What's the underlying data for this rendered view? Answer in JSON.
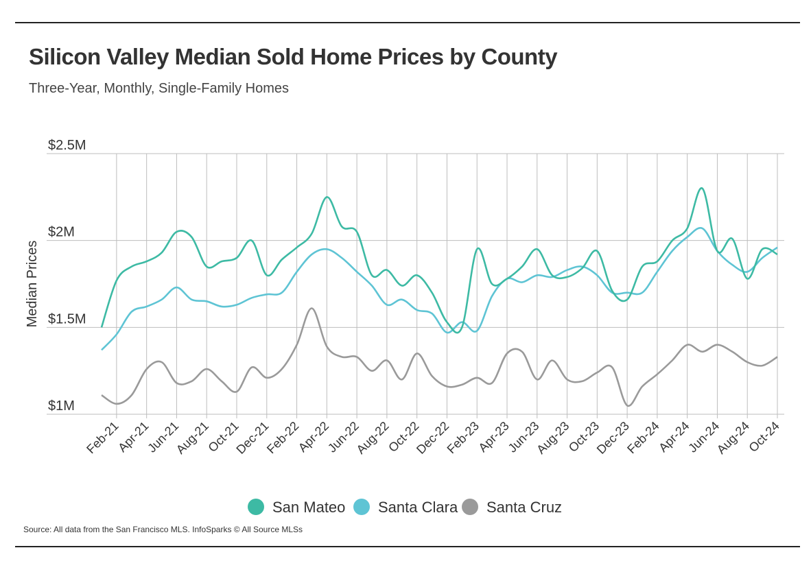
{
  "header": {
    "title": "Silicon Valley Median Sold Home Prices by County",
    "subtitle": "Three-Year, Monthly, Single-Family Homes"
  },
  "footer": {
    "source": "Source:  All data from the San Francisco MLS. InfoSparks © All Source MLSs"
  },
  "chart_data": {
    "type": "line",
    "title": "Silicon Valley Median Sold Home Prices by County",
    "subtitle": "Three-Year, Monthly, Single-Family Homes",
    "ylabel": "Median Prices",
    "xlabel": "",
    "ylim": [
      1000000,
      2500000
    ],
    "yticks": [
      {
        "value": 1000000,
        "label": "$1M"
      },
      {
        "value": 1500000,
        "label": "$1.5M"
      },
      {
        "value": 2000000,
        "label": "$2M"
      },
      {
        "value": 2500000,
        "label": "$2.5M"
      }
    ],
    "grid": "vertical and horizontal",
    "legend_position": "bottom",
    "months": [
      "Jan-21",
      "Feb-21",
      "Mar-21",
      "Apr-21",
      "May-21",
      "Jun-21",
      "Jul-21",
      "Aug-21",
      "Sep-21",
      "Oct-21",
      "Nov-21",
      "Dec-21",
      "Jan-22",
      "Feb-22",
      "Mar-22",
      "Apr-22",
      "May-22",
      "Jun-22",
      "Jul-22",
      "Aug-22",
      "Sep-22",
      "Oct-22",
      "Nov-22",
      "Dec-22",
      "Jan-23",
      "Feb-23",
      "Mar-23",
      "Apr-23",
      "May-23",
      "Jun-23",
      "Jul-23",
      "Aug-23",
      "Sep-23",
      "Oct-23",
      "Nov-23",
      "Dec-23",
      "Jan-24",
      "Feb-24",
      "Mar-24",
      "Apr-24",
      "May-24",
      "Jun-24",
      "Jul-24",
      "Aug-24",
      "Sep-24",
      "Oct-24"
    ],
    "x_tick_labels": [
      "Feb-21",
      "Apr-21",
      "Jun-21",
      "Aug-21",
      "Oct-21",
      "Dec-21",
      "Feb-22",
      "Apr-22",
      "Jun-22",
      "Aug-22",
      "Oct-22",
      "Dec-22",
      "Feb-23",
      "Apr-23",
      "Jun-23",
      "Aug-23",
      "Oct-23",
      "Dec-23",
      "Feb-24",
      "Apr-24",
      "Jun-24",
      "Aug-24",
      "Oct-24"
    ],
    "series": [
      {
        "name": "San Mateo",
        "color": "#3dbaa4",
        "values": [
          1500000,
          1770000,
          1850000,
          1880000,
          1930000,
          2050000,
          2020000,
          1850000,
          1880000,
          1900000,
          2000000,
          1800000,
          1890000,
          1960000,
          2040000,
          2250000,
          2080000,
          2050000,
          1800000,
          1830000,
          1740000,
          1800000,
          1700000,
          1530000,
          1500000,
          1950000,
          1750000,
          1780000,
          1850000,
          1950000,
          1800000,
          1790000,
          1840000,
          1940000,
          1710000,
          1660000,
          1850000,
          1880000,
          2000000,
          2070000,
          2300000,
          1940000,
          2010000,
          1780000,
          1950000,
          1920000
        ]
      },
      {
        "name": "Santa Clara",
        "color": "#5ec4d4",
        "values": [
          1370000,
          1460000,
          1590000,
          1620000,
          1660000,
          1730000,
          1660000,
          1650000,
          1620000,
          1630000,
          1670000,
          1690000,
          1700000,
          1820000,
          1920000,
          1950000,
          1900000,
          1820000,
          1740000,
          1630000,
          1660000,
          1600000,
          1580000,
          1470000,
          1530000,
          1480000,
          1680000,
          1780000,
          1760000,
          1800000,
          1790000,
          1830000,
          1850000,
          1800000,
          1700000,
          1700000,
          1700000,
          1820000,
          1940000,
          2020000,
          2070000,
          1940000,
          1860000,
          1820000,
          1900000,
          1960000
        ]
      },
      {
        "name": "Santa Cruz",
        "color": "#9a9a9a",
        "values": [
          1110000,
          1060000,
          1110000,
          1260000,
          1300000,
          1180000,
          1190000,
          1260000,
          1190000,
          1130000,
          1270000,
          1210000,
          1260000,
          1400000,
          1610000,
          1390000,
          1330000,
          1330000,
          1250000,
          1310000,
          1200000,
          1350000,
          1220000,
          1160000,
          1170000,
          1210000,
          1180000,
          1350000,
          1360000,
          1200000,
          1310000,
          1200000,
          1190000,
          1240000,
          1270000,
          1050000,
          1160000,
          1230000,
          1310000,
          1400000,
          1360000,
          1400000,
          1360000,
          1300000,
          1280000,
          1330000
        ]
      }
    ]
  }
}
